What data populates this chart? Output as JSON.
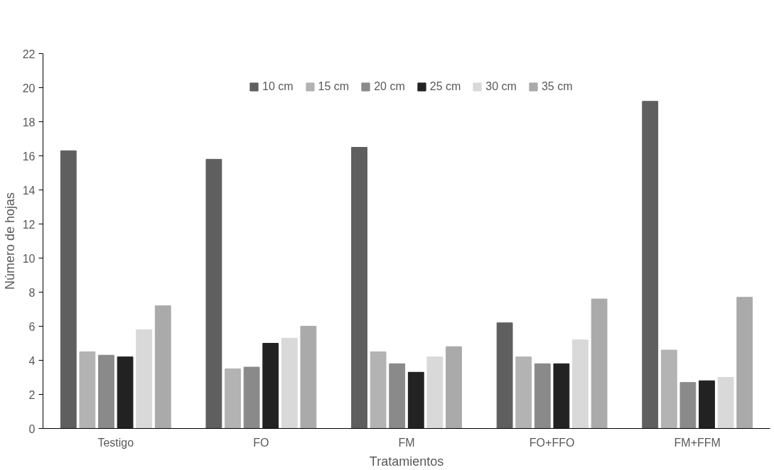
{
  "chart_data": {
    "type": "bar",
    "xlabel": "Tratamientos",
    "ylabel": "Número de hojas",
    "categories": [
      "Testigo",
      "FO",
      "FM",
      "FO+FFO",
      "FM+FFM"
    ],
    "series": [
      {
        "name": "10 cm",
        "color": "#5f5f5f",
        "values": [
          16.3,
          15.8,
          16.5,
          6.2,
          19.2
        ]
      },
      {
        "name": "15 cm",
        "color": "#b3b3b3",
        "values": [
          4.5,
          3.5,
          4.5,
          4.2,
          4.6
        ]
      },
      {
        "name": "20 cm",
        "color": "#8a8a8a",
        "values": [
          4.3,
          3.6,
          3.8,
          3.8,
          2.7
        ]
      },
      {
        "name": "25 cm",
        "color": "#222222",
        "values": [
          4.2,
          5.0,
          3.3,
          3.8,
          2.8
        ]
      },
      {
        "name": "30 cm",
        "color": "#d9d9d9",
        "values": [
          5.8,
          5.3,
          4.2,
          5.2,
          3.0
        ]
      },
      {
        "name": "35 cm",
        "color": "#aaaaaa",
        "values": [
          7.2,
          6.0,
          4.8,
          7.6,
          7.7
        ]
      }
    ],
    "ylim": [
      0,
      22
    ],
    "yticks": [
      0,
      2,
      4,
      6,
      8,
      10,
      12,
      14,
      16,
      18,
      20,
      22
    ],
    "grid": false,
    "legend": "top"
  }
}
